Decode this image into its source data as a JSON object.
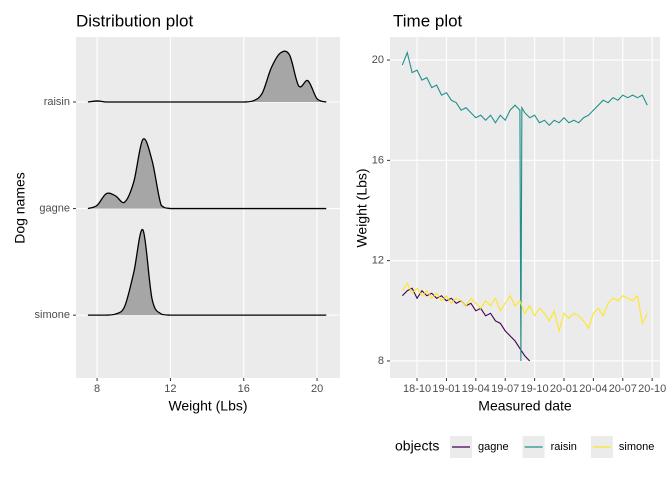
{
  "chart_data": [
    {
      "type": "ridgeline",
      "title": "Distribution plot",
      "x_label": "Weight (Lbs)",
      "y_label": "Dog names",
      "categories": [
        "raisin",
        "gagne",
        "simone"
      ],
      "x": [
        7.5,
        8,
        8.5,
        9,
        9.5,
        10,
        10.5,
        11,
        11.5,
        12,
        12.5,
        13,
        13.5,
        14,
        14.5,
        15,
        15.5,
        16,
        16.5,
        17,
        17.5,
        18,
        18.5,
        19,
        19.5,
        20,
        20.5
      ],
      "series": [
        {
          "values": [
            0,
            0.01,
            0,
            0,
            0,
            0,
            0,
            0,
            0,
            0,
            0,
            0,
            0,
            0,
            0,
            0,
            0,
            0,
            0.01,
            0.08,
            0.32,
            0.46,
            0.44,
            0.15,
            0.2,
            0.03,
            0
          ]
        },
        {
          "values": [
            0,
            0.03,
            0.14,
            0.12,
            0.06,
            0.25,
            0.65,
            0.45,
            0.03,
            0,
            0,
            0,
            0,
            0,
            0,
            0,
            0,
            0,
            0,
            0,
            0,
            0,
            0,
            0,
            0,
            0,
            0
          ]
        },
        {
          "values": [
            0,
            0,
            0,
            0.01,
            0.08,
            0.4,
            0.8,
            0.15,
            0.01,
            0,
            0,
            0,
            0,
            0,
            0,
            0,
            0,
            0,
            0,
            0,
            0,
            0,
            0,
            0,
            0,
            0,
            0
          ]
        }
      ],
      "color": "#a6a6a6",
      "xlim": [
        6.85,
        21.25
      ],
      "xticks": [
        8,
        12,
        16,
        20
      ],
      "grid": true
    },
    {
      "type": "line",
      "title": "Time plot",
      "x_label": "Measured date",
      "y_label": "Weight (Lbs)",
      "legend_title": "objects",
      "legend": "bottom",
      "xlim": [
        -2.76,
        24.8
      ],
      "ylim": [
        7.32,
        20.92
      ],
      "xticks": [
        {
          "value": 0,
          "label": "18-10"
        },
        {
          "value": 3,
          "label": "19-01"
        },
        {
          "value": 6,
          "label": "19-04"
        },
        {
          "value": 9,
          "label": "19-07"
        },
        {
          "value": 12,
          "label": "19-10"
        },
        {
          "value": 15,
          "label": "20-01"
        },
        {
          "value": 18,
          "label": "20-04"
        },
        {
          "value": 21,
          "label": "20-07"
        },
        {
          "value": 24,
          "label": "20-10"
        }
      ],
      "yticks": [
        8,
        12,
        16,
        20
      ],
      "grid": true,
      "series": [
        {
          "name": "gagne",
          "color": "#440154",
          "x": [
            -1.5,
            -1,
            -0.5,
            0,
            0.5,
            1,
            1.5,
            2,
            2.5,
            3,
            3.5,
            4,
            4.5,
            5,
            5.5,
            6,
            6.5,
            7,
            7.5,
            8,
            8.5,
            9,
            9.5,
            10,
            10.5,
            11,
            11.5
          ],
          "values": [
            10.6,
            10.8,
            10.9,
            10.5,
            10.8,
            10.6,
            10.7,
            10.5,
            10.6,
            10.4,
            10.5,
            10.3,
            10.4,
            10.2,
            10.3,
            10.0,
            10.1,
            9.8,
            9.9,
            9.6,
            9.5,
            9.2,
            9.0,
            8.8,
            8.5,
            8.2,
            8.0
          ]
        },
        {
          "name": "raisin",
          "color": "#21908c",
          "x": [
            -1.5,
            -1,
            -0.5,
            0,
            0.5,
            1,
            1.5,
            2,
            2.5,
            3,
            3.5,
            4,
            4.5,
            5,
            5.5,
            6,
            6.5,
            7,
            7.5,
            8,
            8.5,
            9,
            9.5,
            10,
            10.5,
            10.6,
            10.7,
            11,
            11.5,
            12,
            12.5,
            13,
            13.5,
            14,
            14.5,
            15,
            15.5,
            16,
            16.5,
            17,
            17.5,
            18,
            18.5,
            19,
            19.5,
            20,
            20.5,
            21,
            21.5,
            22,
            22.5,
            23,
            23.5
          ],
          "values": [
            19.8,
            20.3,
            19.5,
            19.6,
            19.2,
            19.3,
            18.9,
            19.0,
            18.6,
            18.7,
            18.4,
            18.3,
            18.0,
            18.1,
            17.9,
            17.7,
            17.8,
            17.6,
            17.8,
            17.5,
            17.8,
            17.6,
            18.0,
            18.2,
            18.0,
            8.0,
            18.1,
            17.9,
            17.7,
            17.8,
            17.5,
            17.6,
            17.4,
            17.6,
            17.5,
            17.7,
            17.5,
            17.6,
            17.5,
            17.7,
            17.8,
            18.0,
            18.2,
            18.4,
            18.3,
            18.5,
            18.4,
            18.6,
            18.5,
            18.6,
            18.5,
            18.6,
            18.2
          ]
        },
        {
          "name": "simone",
          "color": "#fde725",
          "x": [
            -1.5,
            -1,
            -0.5,
            0,
            0.5,
            1,
            1.5,
            2,
            2.5,
            3,
            3.5,
            4,
            4.5,
            5,
            5.5,
            6,
            6.5,
            7,
            7.5,
            8,
            8.5,
            9,
            9.5,
            10,
            10.5,
            11,
            11.5,
            12,
            12.5,
            13,
            13.5,
            14,
            14.5,
            15,
            15.5,
            16,
            16.5,
            17,
            17.5,
            18,
            18.5,
            19,
            19.5,
            20,
            20.5,
            21,
            21.5,
            22,
            22.5,
            23,
            23.5
          ],
          "values": [
            10.8,
            11.1,
            10.7,
            10.9,
            10.6,
            10.8,
            10.5,
            10.7,
            10.4,
            10.6,
            10.3,
            10.5,
            10.4,
            10.2,
            10.5,
            10.3,
            10.1,
            10.4,
            10.2,
            10.5,
            10.0,
            10.3,
            10.6,
            10.2,
            10.4,
            9.9,
            10.2,
            9.8,
            10.1,
            9.9,
            9.6,
            10.0,
            9.2,
            9.9,
            9.7,
            9.9,
            9.8,
            9.6,
            9.3,
            9.9,
            10.1,
            9.8,
            10.3,
            10.5,
            10.4,
            10.6,
            10.5,
            10.4,
            10.6,
            9.5,
            9.9
          ]
        }
      ]
    }
  ]
}
